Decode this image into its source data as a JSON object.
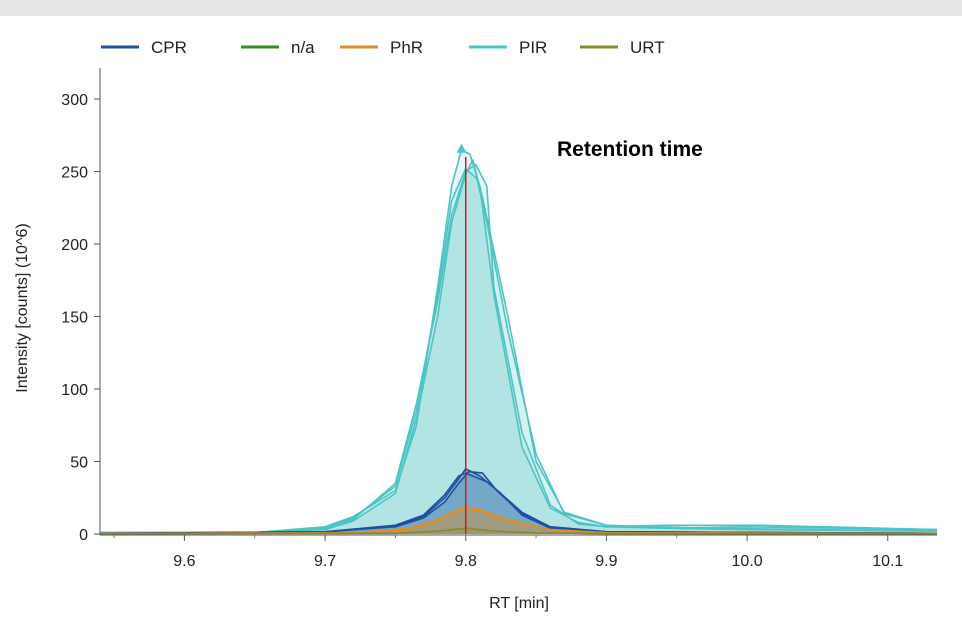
{
  "chart_data": {
    "type": "line",
    "title": "",
    "xlabel": "RT [min]",
    "ylabel": "Intensity [counts] (10^6)",
    "annotation": "Retention time",
    "marker_rt": 9.8,
    "xlim": [
      9.54,
      10.135
    ],
    "ylim": [
      0,
      320
    ],
    "x_ticks": [
      9.6,
      9.7,
      9.8,
      9.9,
      10.0,
      10.1
    ],
    "x_tick_labels": [
      "9.6",
      "9.7",
      "9.8",
      "9.9",
      "10.0",
      "10.1"
    ],
    "y_ticks": [
      0,
      50,
      100,
      150,
      200,
      250,
      300
    ],
    "y_tick_labels": [
      "0",
      "50",
      "100",
      "150",
      "200",
      "250",
      "300"
    ],
    "grid": false,
    "legend_position": "top-left",
    "legend": [
      {
        "name": "CPR",
        "color": "#1f4fa0"
      },
      {
        "name": "n/a",
        "color": "#3a8c22"
      },
      {
        "name": "PhR",
        "color": "#d9902a"
      },
      {
        "name": "PIR",
        "color": "#4cc4c4"
      },
      {
        "name": "URT",
        "color": "#8a8a2a"
      }
    ],
    "series": [
      {
        "name": "PIR",
        "color": "#4cc4c4",
        "x": [
          9.54,
          9.65,
          9.7,
          9.72,
          9.75,
          9.765,
          9.78,
          9.79,
          9.797,
          9.803,
          9.81,
          9.82,
          9.84,
          9.86,
          9.88,
          9.9,
          9.94,
          10.0,
          10.135
        ],
        "y": [
          1,
          1,
          5,
          12,
          30,
          75,
          170,
          240,
          265,
          262,
          240,
          165,
          60,
          18,
          8,
          5,
          4,
          3,
          2
        ]
      },
      {
        "name": "PIR",
        "color": "#4cc4c4",
        "x": [
          9.54,
          9.65,
          9.7,
          9.72,
          9.75,
          9.765,
          9.78,
          9.79,
          9.8,
          9.807,
          9.815,
          9.82,
          9.84,
          9.86,
          9.88,
          9.9,
          9.94,
          10.01,
          10.135
        ],
        "y": [
          1,
          1,
          4,
          10,
          35,
          90,
          160,
          220,
          250,
          255,
          240,
          170,
          70,
          20,
          7,
          5,
          6,
          6,
          3
        ]
      },
      {
        "name": "PIR",
        "color": "#4cc4c4",
        "x": [
          9.54,
          9.65,
          9.7,
          9.72,
          9.75,
          9.765,
          9.78,
          9.79,
          9.8,
          9.805,
          9.812,
          9.83,
          9.85,
          9.87,
          9.9,
          9.95,
          10.0,
          10.135
        ],
        "y": [
          1,
          1,
          3,
          9,
          28,
          80,
          150,
          215,
          248,
          258,
          232,
          150,
          50,
          15,
          6,
          4,
          5,
          3
        ]
      },
      {
        "name": "PIR",
        "color": "#4cc4c4",
        "x": [
          9.54,
          9.65,
          9.7,
          9.72,
          9.75,
          9.765,
          9.78,
          9.79,
          9.8,
          9.808,
          9.815,
          9.83,
          9.85,
          9.87,
          9.9,
          9.97,
          10.135
        ],
        "y": [
          1,
          1,
          4,
          11,
          33,
          85,
          165,
          230,
          252,
          245,
          215,
          140,
          55,
          14,
          6,
          4,
          2
        ]
      },
      {
        "name": "CPR",
        "color": "#1f4fa0",
        "x": [
          9.54,
          9.7,
          9.75,
          9.77,
          9.785,
          9.795,
          9.8,
          9.81,
          9.82,
          9.84,
          9.86,
          9.9,
          10.135
        ],
        "y": [
          0.5,
          1.5,
          6,
          12,
          25,
          38,
          45,
          40,
          32,
          15,
          5,
          1.5,
          0.5
        ]
      },
      {
        "name": "CPR",
        "color": "#1f4fa0",
        "x": [
          9.54,
          9.7,
          9.75,
          9.77,
          9.785,
          9.795,
          9.802,
          9.812,
          9.822,
          9.84,
          9.86,
          9.9,
          10.135
        ],
        "y": [
          0.5,
          1.5,
          5,
          11,
          22,
          35,
          43,
          42,
          30,
          14,
          5,
          1.5,
          0.5
        ]
      },
      {
        "name": "CPR",
        "color": "#1f4fa0",
        "x": [
          9.54,
          9.7,
          9.75,
          9.77,
          9.785,
          9.795,
          9.8,
          9.815,
          9.825,
          9.84,
          9.86,
          9.9,
          10.135
        ],
        "y": [
          0.5,
          1.5,
          6,
          13,
          27,
          40,
          42,
          36,
          28,
          13,
          4,
          1.5,
          0.5
        ]
      },
      {
        "name": "PhR",
        "color": "#d9902a",
        "x": [
          9.54,
          9.72,
          9.76,
          9.78,
          9.79,
          9.8,
          9.81,
          9.83,
          9.86,
          9.9,
          10.135
        ],
        "y": [
          0.3,
          0.8,
          4,
          10,
          15,
          19,
          17,
          10,
          3,
          0.8,
          0.3
        ]
      },
      {
        "name": "PhR",
        "color": "#d9902a",
        "x": [
          9.54,
          9.72,
          9.76,
          9.78,
          9.79,
          9.8,
          9.81,
          9.83,
          9.86,
          9.9,
          10.135
        ],
        "y": [
          0.3,
          0.8,
          3,
          9,
          14,
          17,
          16,
          9,
          3,
          0.8,
          0.3
        ]
      },
      {
        "name": "URT",
        "color": "#8a8a2a",
        "x": [
          9.54,
          9.75,
          9.78,
          9.8,
          9.82,
          9.85,
          9.9,
          10.135
        ],
        "y": [
          0.2,
          0.5,
          2,
          4,
          2,
          0.8,
          0.3,
          0.2
        ]
      }
    ]
  }
}
